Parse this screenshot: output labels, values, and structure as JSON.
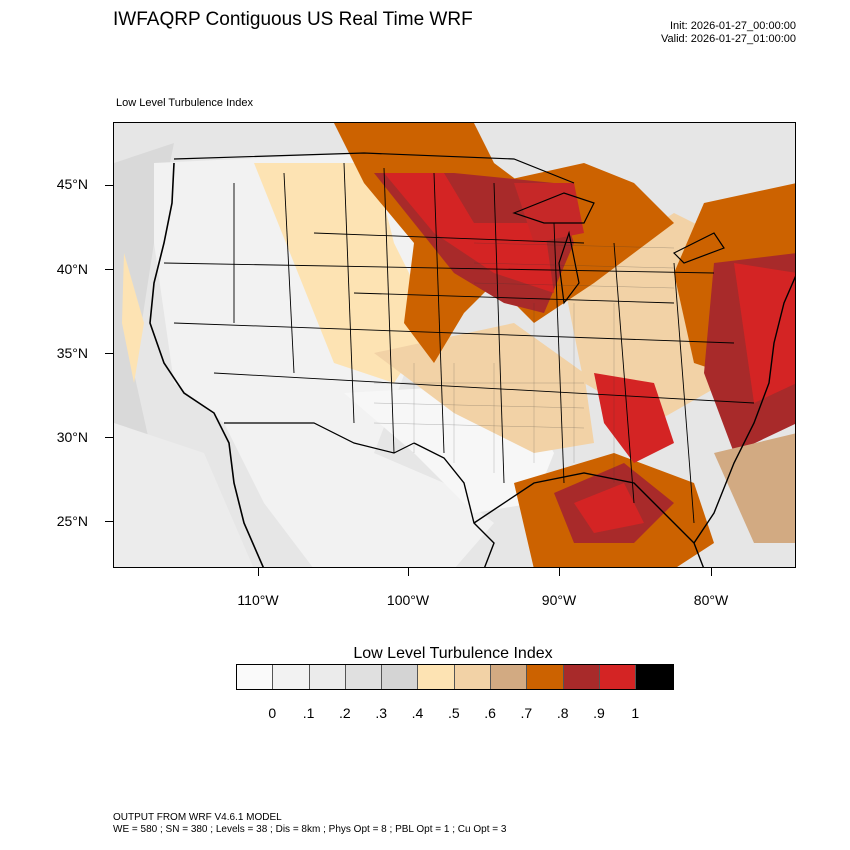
{
  "header": {
    "title": "IWFAQRP Contiguous US Real Time WRF",
    "init": "Init: 2026-01-27_00:00:00",
    "valid": "Valid: 2026-01-27_01:00:00"
  },
  "plot": {
    "label": "Low Level Turbulence Index",
    "lat_labels": [
      "45°N",
      "40°N",
      "35°N",
      "30°N",
      "25°N"
    ],
    "lon_labels": [
      "110°W",
      "100°W",
      "90°W",
      "80°W"
    ]
  },
  "colorbar": {
    "title": "Low Level Turbulence Index",
    "tick_labels": [
      "0",
      ".1",
      ".2",
      ".3",
      ".4",
      ".5",
      ".6",
      ".7",
      ".8",
      ".9",
      "1"
    ],
    "colors": [
      "#fafafa",
      "#f2f2f2",
      "#ebebeb",
      "#e0e0e0",
      "#d4d4d4",
      "#fde3b3",
      "#f2d2a6",
      "#d2aa82",
      "#cc6200",
      "#a82a2a",
      "#d42424",
      "#000000"
    ]
  },
  "footer": {
    "line1": "OUTPUT FROM WRF V4.6.1 MODEL",
    "line2": "WE = 580 ; SN = 380 ; Levels = 38 ; Dis = 8km ; Phys Opt = 8 ; PBL Opt = 1 ; Cu Opt = 3"
  }
}
